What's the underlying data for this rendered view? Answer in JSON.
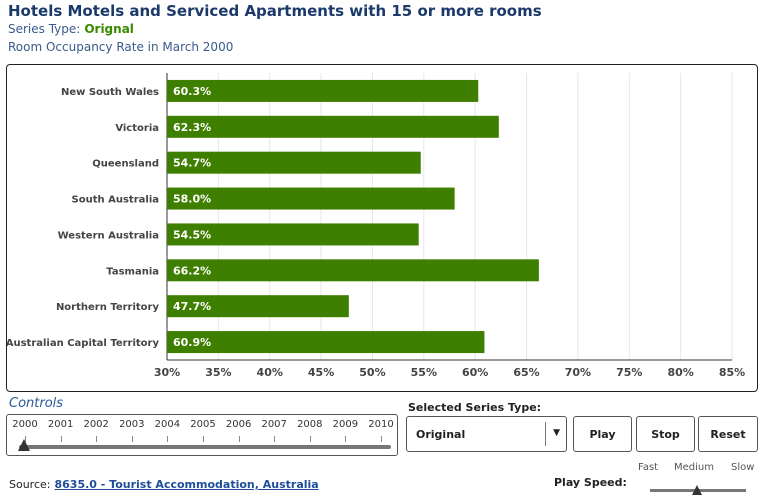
{
  "header": {
    "title": "Hotels Motels and Serviced Apartments with 15 or more rooms",
    "series_type_label": "Series Type:",
    "series_type_value": "Orignal",
    "subtitle": "Room Occupancy Rate in March 2000"
  },
  "chart_data": {
    "type": "bar",
    "orientation": "horizontal",
    "title": "Room Occupancy Rate in March 2000",
    "categories": [
      "New South Wales",
      "Victoria",
      "Queensland",
      "South Australia",
      "Western Australia",
      "Tasmania",
      "Northern Territory",
      "Australian Capital Territory"
    ],
    "values": [
      60.3,
      62.3,
      54.7,
      58.0,
      54.5,
      66.2,
      47.7,
      60.9
    ],
    "data_labels": [
      "60.3%",
      "62.3%",
      "54.7%",
      "58.0%",
      "54.5%",
      "66.2%",
      "47.7%",
      "60.9%"
    ],
    "xlim": [
      30,
      85
    ],
    "xticks": [
      30,
      35,
      40,
      45,
      50,
      55,
      60,
      65,
      70,
      75,
      80,
      85
    ],
    "xtick_labels": [
      "30%",
      "35%",
      "40%",
      "45%",
      "50%",
      "55%",
      "60%",
      "65%",
      "70%",
      "75%",
      "80%",
      "85%"
    ],
    "xlabel": "",
    "ylabel": "",
    "grid": true,
    "bar_color": "#3f7f00"
  },
  "controls": {
    "heading": "Controls",
    "years": [
      "2000",
      "2001",
      "2002",
      "2003",
      "2004",
      "2005",
      "2006",
      "2007",
      "2008",
      "2009",
      "2010"
    ],
    "selected_year": "2000",
    "select_label": "Selected Series Type:",
    "select_value": "Original",
    "play_label": "Play",
    "stop_label": "Stop",
    "reset_label": "Reset"
  },
  "footer": {
    "source_label": "Source:",
    "source_link": "8635.0 - Tourist Accommodation, Australia",
    "speed_label": "Play Speed:",
    "speed_options": [
      "Fast",
      "Medium",
      "Slow"
    ],
    "speed_selected": "Medium"
  },
  "colors": {
    "title": "#1b3a6b",
    "accent_green": "#3a8a00",
    "link": "#1f4e9a"
  }
}
